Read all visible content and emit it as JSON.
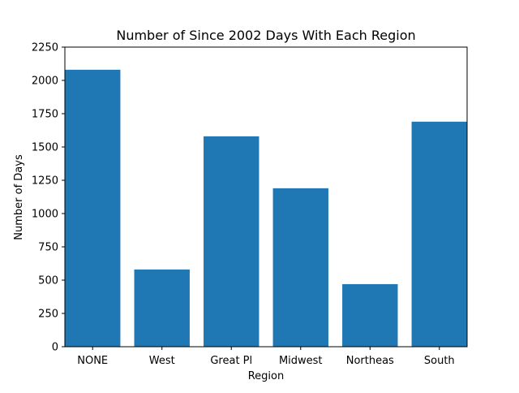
{
  "chart_data": {
    "type": "bar",
    "title": "Number of Since 2002 Days With Each Region",
    "xlabel": "Region",
    "ylabel": "Number of Days",
    "categories": [
      "NONE",
      "West",
      "Great Pl",
      "Midwest",
      "Northeas",
      "South"
    ],
    "values": [
      2080,
      580,
      1580,
      1190,
      470,
      1690
    ],
    "ylim": [
      0,
      2250
    ],
    "yticks": [
      0,
      250,
      500,
      750,
      1000,
      1250,
      1500,
      1750,
      2000,
      2250
    ],
    "bar_color": "#1f77b4",
    "grid": false,
    "legend": "none"
  }
}
